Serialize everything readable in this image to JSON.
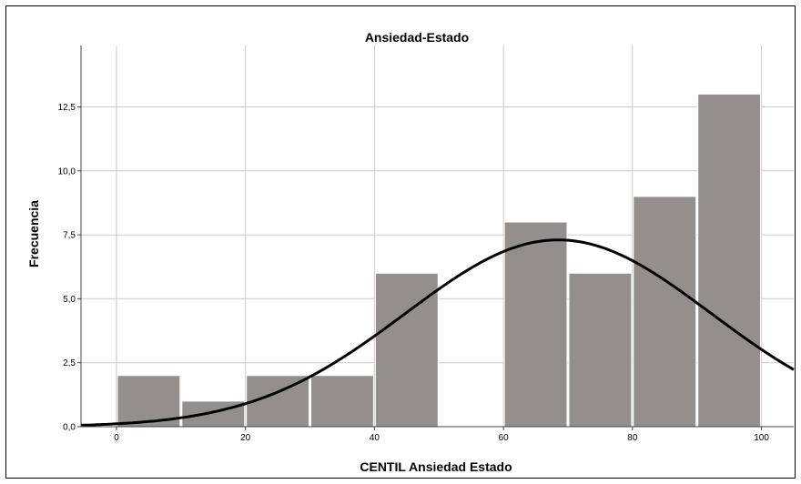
{
  "chart_data": {
    "type": "bar",
    "title": "Ansiedad-Estado",
    "xlabel": "CENTIL Ansiedad Estado",
    "ylabel": "Frecuencia",
    "bins": [
      {
        "x0": 0,
        "x1": 10,
        "value": 2
      },
      {
        "x0": 10,
        "x1": 20,
        "value": 1
      },
      {
        "x0": 20,
        "x1": 30,
        "value": 2
      },
      {
        "x0": 30,
        "x1": 40,
        "value": 2
      },
      {
        "x0": 40,
        "x1": 50,
        "value": 6
      },
      {
        "x0": 50,
        "x1": 60,
        "value": 0
      },
      {
        "x0": 60,
        "x1": 70,
        "value": 8
      },
      {
        "x0": 70,
        "x1": 80,
        "value": 6
      },
      {
        "x0": 80,
        "x1": 90,
        "value": 9
      },
      {
        "x0": 90,
        "x1": 100,
        "value": 13
      }
    ],
    "xticks": [
      {
        "value": 0,
        "label": "0"
      },
      {
        "value": 20,
        "label": "20"
      },
      {
        "value": 40,
        "label": "40"
      },
      {
        "value": 60,
        "label": "60"
      },
      {
        "value": 80,
        "label": "80"
      },
      {
        "value": 100,
        "label": "100"
      }
    ],
    "yticks": [
      {
        "value": 0,
        "label": "0,0"
      },
      {
        "value": 2.5,
        "label": "2,5"
      },
      {
        "value": 5,
        "label": "5,0"
      },
      {
        "value": 7.5,
        "label": "7,5"
      },
      {
        "value": 10,
        "label": "10,0"
      },
      {
        "value": 12.5,
        "label": "12,5"
      }
    ],
    "xlim": [
      -5.5,
      105
    ],
    "ylim": [
      0,
      14.9
    ],
    "normal_curve": {
      "mean": 68.5,
      "sd": 23.7,
      "peak": 7.3
    },
    "grid": true,
    "colors": {
      "bar": "#948f8d",
      "bar_stroke": "#ffffff",
      "curve": "#000000",
      "grid": "#cccccc"
    }
  }
}
